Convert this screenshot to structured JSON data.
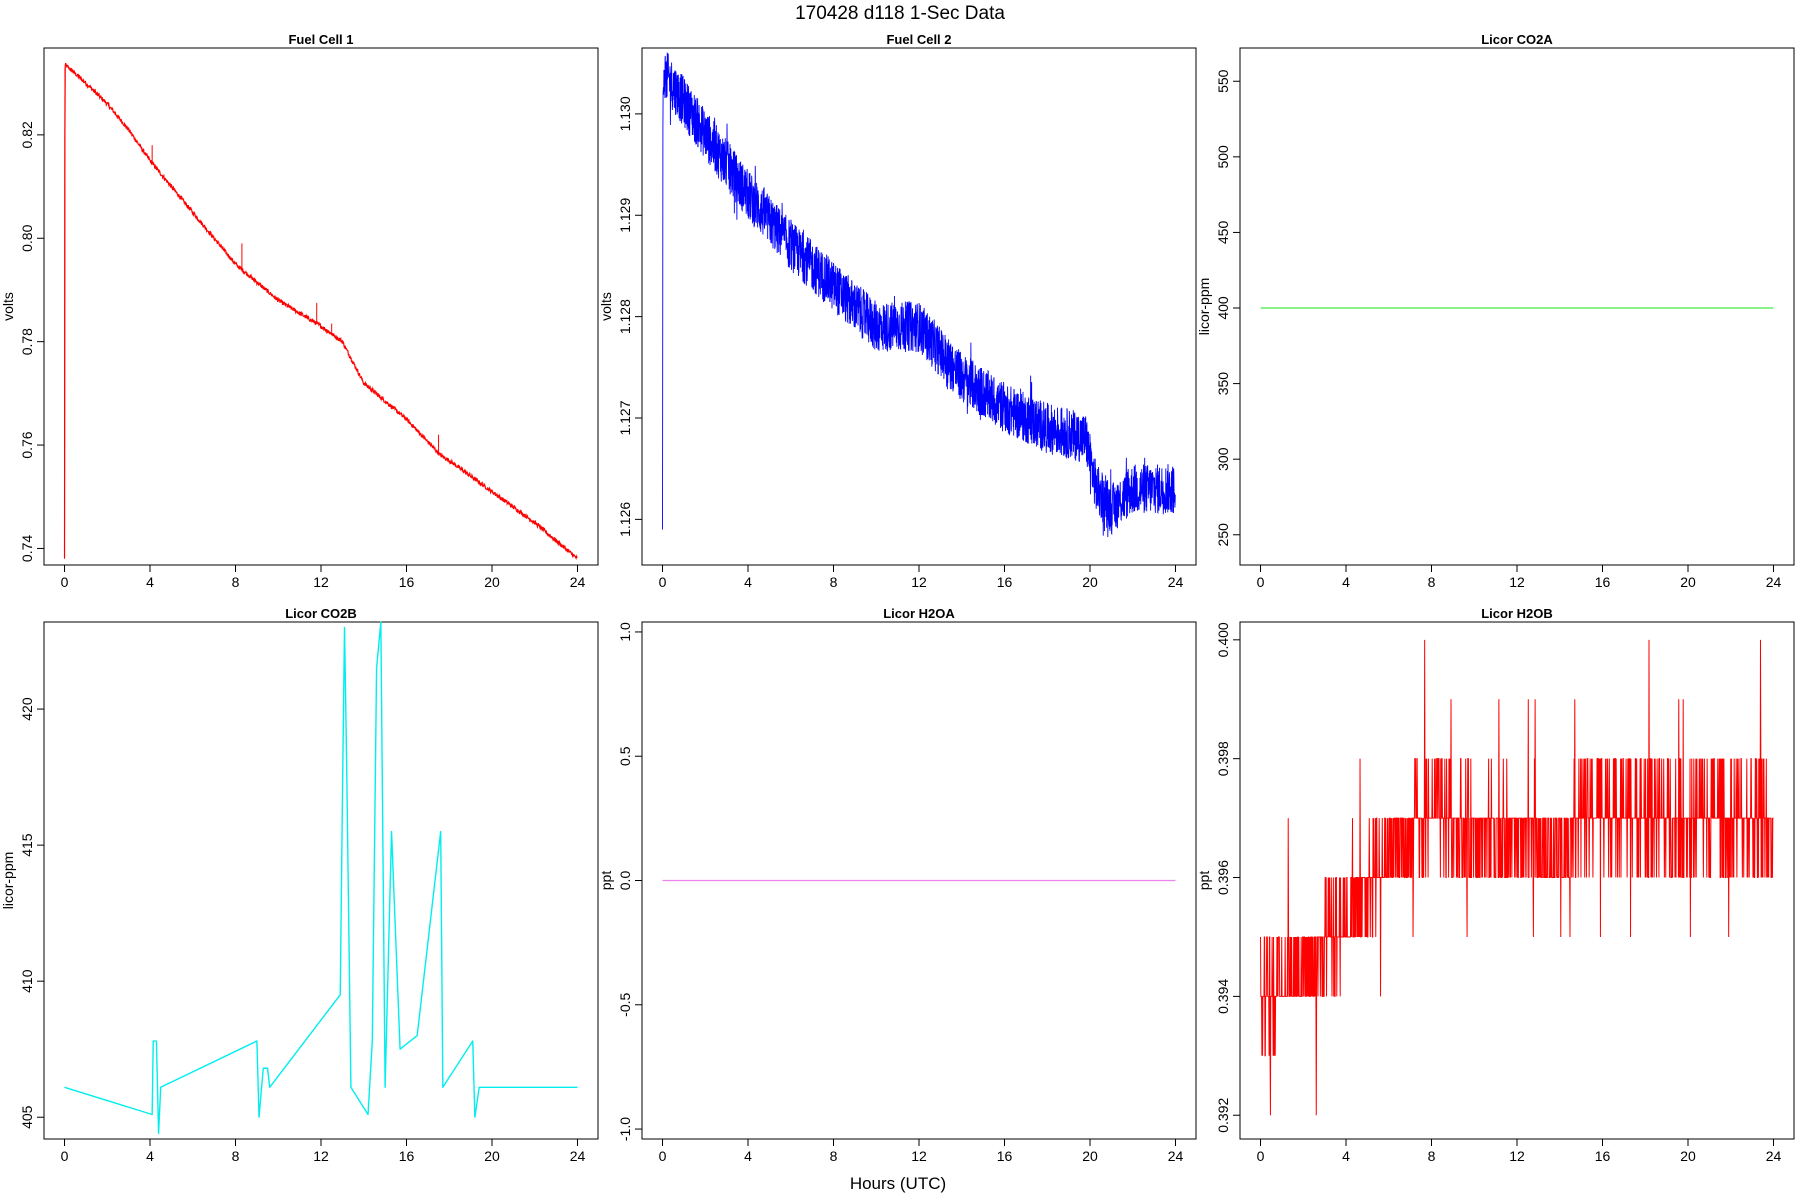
{
  "figure": {
    "title": "170428   d118   1-Sec Data",
    "xlabel": "Hours (UTC)"
  },
  "chart_data": [
    {
      "type": "line",
      "title": "Fuel Cell 1",
      "ylabel": "volts",
      "color": "#ff0000",
      "xlim": [
        0,
        24
      ],
      "ylim": [
        0.7368,
        0.8368
      ],
      "xticks": [
        0,
        4,
        8,
        12,
        16,
        20,
        24
      ],
      "yticks": [
        0.74,
        0.76,
        0.78,
        0.8,
        0.82
      ],
      "ytick_labels": [
        "0.74",
        "0.76",
        "0.78",
        "0.80",
        "0.82"
      ],
      "style": "trend",
      "x": [
        0,
        0.02,
        0.05,
        1,
        2,
        3,
        4,
        6,
        8,
        10,
        12,
        13,
        14,
        16,
        17.6,
        18,
        20,
        22,
        24
      ],
      "y": [
        0.738,
        0.833,
        0.8335,
        0.83,
        0.826,
        0.821,
        0.815,
        0.805,
        0.795,
        0.788,
        0.783,
        0.78,
        0.772,
        0.765,
        0.758,
        0.757,
        0.751,
        0.745,
        0.738
      ],
      "spikes": [
        {
          "x": 4.1,
          "y": 0.818
        },
        {
          "x": 8.3,
          "y": 0.799
        },
        {
          "x": 11.8,
          "y": 0.7875
        },
        {
          "x": 12.5,
          "y": 0.7835
        },
        {
          "x": 17.5,
          "y": 0.762
        }
      ],
      "noise": 0.0004
    },
    {
      "type": "line",
      "title": "Fuel Cell 2",
      "ylabel": "volts",
      "color": "#0000ff",
      "xlim": [
        0,
        24
      ],
      "ylim": [
        1.12555,
        1.13065
      ],
      "xticks": [
        0,
        4,
        8,
        12,
        16,
        20,
        24
      ],
      "yticks": [
        1.126,
        1.127,
        1.128,
        1.129,
        1.13
      ],
      "ytick_labels": [
        "1.126",
        "1.127",
        "1.128",
        "1.129",
        "1.130"
      ],
      "style": "noisy",
      "x": [
        0,
        0.02,
        0.1,
        2,
        4,
        6,
        8,
        10,
        12,
        14,
        16,
        18,
        19.8,
        20.3,
        21,
        22,
        23,
        24
      ],
      "y": [
        1.1259,
        1.1302,
        1.1304,
        1.1298,
        1.1292,
        1.1287,
        1.1283,
        1.1279,
        1.1279,
        1.1274,
        1.1271,
        1.1269,
        1.1268,
        1.1263,
        1.1261,
        1.1263,
        1.1263,
        1.1263
      ],
      "band": 0.00025
    },
    {
      "type": "line",
      "title": "Licor CO2A",
      "ylabel": "licor-ppm",
      "color": "#44ee44",
      "xlim": [
        0,
        24
      ],
      "ylim": [
        230,
        572
      ],
      "xticks": [
        0,
        4,
        8,
        12,
        16,
        20,
        24
      ],
      "yticks": [
        250,
        300,
        350,
        400,
        450,
        500,
        550
      ],
      "ytick_labels": [
        "250",
        "300",
        "350",
        "400",
        "450",
        "500",
        "550"
      ],
      "style": "trend",
      "x": [
        0,
        24
      ],
      "y": [
        400,
        400
      ],
      "spikes": [],
      "noise": 0
    },
    {
      "type": "line",
      "title": "Licor CO2B",
      "ylabel": "licor-ppm",
      "color": "#00eeee",
      "xlim": [
        0,
        24
      ],
      "ylim": [
        404.2,
        423.2
      ],
      "xticks": [
        0,
        4,
        8,
        12,
        16,
        20,
        24
      ],
      "yticks": [
        405,
        410,
        415,
        420
      ],
      "ytick_labels": [
        "405",
        "410",
        "415",
        "420"
      ],
      "style": "steps",
      "x": [
        0,
        4.1,
        4.15,
        4.3,
        4.4,
        4.5,
        9.0,
        9.1,
        9.3,
        9.5,
        9.6,
        12.9,
        13.0,
        13.1,
        13.2,
        13.4,
        14.2,
        14.4,
        14.6,
        14.8,
        15.0,
        15.3,
        15.7,
        16.5,
        17.6,
        17.7,
        19.1,
        19.2,
        19.4,
        24
      ],
      "y": [
        406.1,
        405.1,
        407.8,
        407.8,
        404.4,
        406.1,
        407.8,
        405.0,
        406.8,
        406.8,
        406.1,
        409.5,
        416.5,
        423.0,
        418.0,
        406.1,
        405.1,
        407.8,
        421.5,
        423.2,
        406.1,
        415.5,
        407.5,
        408.0,
        415.5,
        406.1,
        407.8,
        405.0,
        406.1,
        406.1
      ]
    },
    {
      "type": "line",
      "title": "Licor H2OA",
      "ylabel": "ppt",
      "color": "#ee82ee",
      "xlim": [
        0,
        24
      ],
      "ylim": [
        -1.04,
        1.04
      ],
      "xticks": [
        0,
        4,
        8,
        12,
        16,
        20,
        24
      ],
      "yticks": [
        -1.0,
        -0.5,
        0.0,
        0.5,
        1.0
      ],
      "ytick_labels": [
        "-1.0",
        "-0.5",
        "0.0",
        "0.5",
        "1.0"
      ],
      "style": "trend",
      "x": [
        0,
        24
      ],
      "y": [
        0,
        0
      ],
      "spikes": [],
      "noise": 0
    },
    {
      "type": "line",
      "title": "Licor H2OB",
      "ylabel": "ppt",
      "color": "#ff0000",
      "xlim": [
        0,
        24
      ],
      "ylim": [
        0.3916,
        0.4003
      ],
      "xticks": [
        0,
        4,
        8,
        12,
        16,
        20,
        24
      ],
      "yticks": [
        0.392,
        0.394,
        0.396,
        0.398,
        0.4
      ],
      "ytick_labels": [
        "0.392",
        "0.394",
        "0.396",
        "0.398",
        "0.400"
      ],
      "style": "quantized",
      "x": [
        0,
        2,
        3.5,
        6.2,
        8,
        12,
        13.5,
        15,
        16,
        20,
        24
      ],
      "y": [
        0.394,
        0.3945,
        0.395,
        0.3965,
        0.397,
        0.3967,
        0.3965,
        0.397,
        0.3972,
        0.397,
        0.397
      ],
      "quantum": 0.001
    }
  ]
}
